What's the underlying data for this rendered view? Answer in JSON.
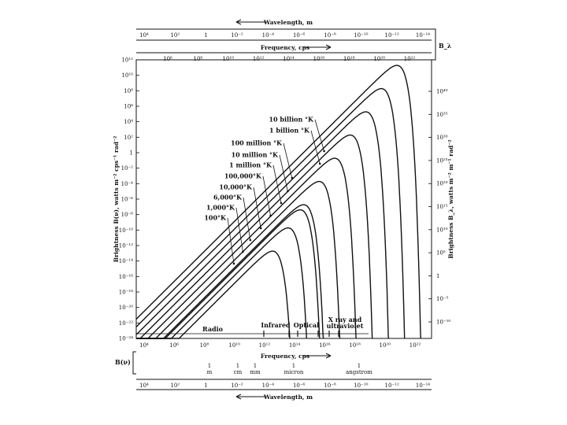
{
  "chart_data": {
    "type": "line",
    "top_axes": {
      "wavelength_title": "Wavelength, m",
      "wavelength_ticks": [
        "10⁴",
        "10²",
        "1",
        "10⁻²",
        "10⁻⁴",
        "10⁻⁶",
        "10⁻⁸",
        "10⁻¹⁰",
        "10⁻¹²",
        "10⁻¹⁴"
      ],
      "frequency_title": "Frequency, cps",
      "frequency_ticks": [
        "10⁶",
        "10⁸",
        "10¹⁰",
        "10¹²",
        "10¹⁴",
        "10¹⁶",
        "10¹⁸",
        "10²⁰",
        "10²²"
      ],
      "side_label": "B_λ"
    },
    "bottom_axes": {
      "frequency_title": "Frequency, cps",
      "frequency_ticks": [
        "10⁴",
        "10⁶",
        "10⁸",
        "10¹⁰",
        "10¹²",
        "10¹⁴",
        "10¹⁶",
        "10¹⁸",
        "10²⁰",
        "10²²"
      ],
      "side_label": "B(ν)",
      "unit_marks": [
        "1 m",
        "1 cm",
        "1 mm",
        "1 micron",
        "1 angstrom"
      ],
      "wavelength_title": "Wavelength, m",
      "wavelength_ticks": [
        "10⁴",
        "10²",
        "1",
        "10⁻²",
        "10⁻⁴",
        "10⁻⁶",
        "10⁻⁸",
        "10⁻¹⁰",
        "10⁻¹²",
        "10⁻¹⁴"
      ]
    },
    "left_axis": {
      "label": "Brightness B(ν), watts m⁻² cps⁻¹ rad⁻²",
      "ticks": [
        "10¹²",
        "10¹⁰",
        "10⁸",
        "10⁶",
        "10⁴",
        "10²",
        "1",
        "10⁻²",
        "10⁻⁴",
        "10⁻⁶",
        "10⁻⁸",
        "10⁻¹⁰",
        "10⁻¹²",
        "10⁻¹⁴",
        "10⁻¹⁶",
        "10⁻¹⁸",
        "10⁻²⁰",
        "10⁻²²",
        "10⁻²⁴"
      ],
      "ylim_log10": [
        -24,
        12
      ]
    },
    "right_axis": {
      "label": "Brightness B_λ, watts m⁻² m⁻¹ rad⁻²",
      "ticks": [
        "10⁴⁰",
        "10³⁵",
        "10³⁰",
        "10²⁵",
        "10²⁰",
        "10¹⁵",
        "10¹⁰",
        "10⁵",
        "1",
        "10⁻⁵",
        "10⁻¹⁰"
      ]
    },
    "xlim_log10": [
      4,
      23
    ],
    "series": [
      {
        "name": "10 billion °K",
        "temperature": 10000000000.0
      },
      {
        "name": "1 billion °K",
        "temperature": 1000000000.0
      },
      {
        "name": "100 million °K",
        "temperature": 100000000.0
      },
      {
        "name": "10 million °K",
        "temperature": 10000000.0
      },
      {
        "name": "1 million °K",
        "temperature": 1000000.0
      },
      {
        "name": "100,000°K",
        "temperature": 100000.0
      },
      {
        "name": "10,000°K",
        "temperature": 10000.0
      },
      {
        "name": "6,000°K",
        "temperature": 6000
      },
      {
        "name": "1,000°K",
        "temperature": 1000
      },
      {
        "name": "100°K",
        "temperature": 100
      }
    ],
    "bands": [
      {
        "label": "Radio"
      },
      {
        "label": "Infrared"
      },
      {
        "label": "Optical"
      },
      {
        "label": "X ray and ultraviolet"
      }
    ]
  }
}
